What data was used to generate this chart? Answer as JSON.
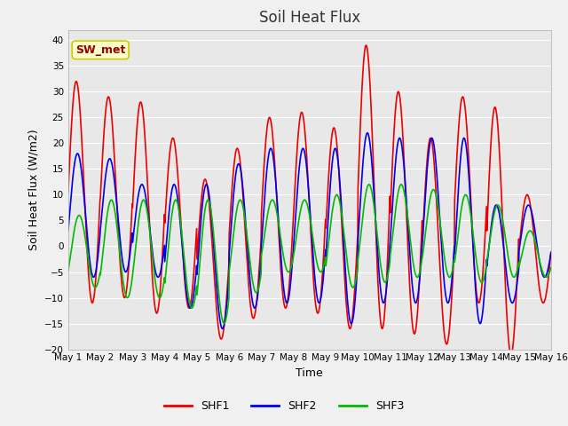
{
  "title": "Soil Heat Flux",
  "xlabel": "Time",
  "ylabel": "Soil Heat Flux (W/m2)",
  "ylim": [
    -20,
    42
  ],
  "yticks": [
    -20,
    -15,
    -10,
    -5,
    0,
    5,
    10,
    15,
    20,
    25,
    30,
    35,
    40
  ],
  "fig_bg_color": "#f0f0f0",
  "plot_bg_color": "#e8e8e8",
  "title_fontsize": 12,
  "label_fontsize": 9,
  "tick_fontsize": 7.5,
  "annotation_text": "SW_met",
  "annotation_bg": "#ffffcc",
  "annotation_border": "#cccc00",
  "annotation_text_color": "#990000",
  "line_colors": {
    "SHF1": "#ee0000",
    "SHF2": "#0000ee",
    "SHF3": "#00bb00"
  },
  "line_width": 1.2,
  "x_tick_labels": [
    "May 1",
    "May 2",
    "May 3",
    "May 4",
    "May 5",
    "May 6",
    "May 7",
    "May 8",
    "May 9",
    "May 10",
    "May 11",
    "May 12",
    "May 13",
    "May 14",
    "May 15",
    "May 16"
  ],
  "n_days": 15,
  "points_per_day": 96
}
